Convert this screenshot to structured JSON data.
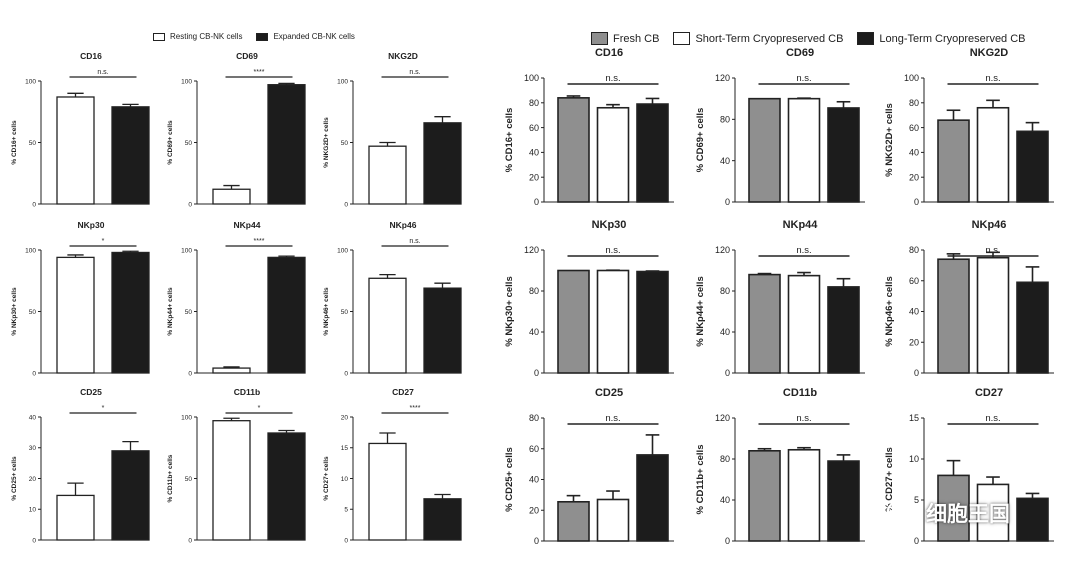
{
  "colors": {
    "fresh": "#8f8f8f",
    "short": "#ffffff",
    "long": "#1c1c1c",
    "resting": "#ffffff",
    "expanded": "#1c1c1c",
    "axis": "#222222"
  },
  "legend_left": [
    {
      "label": "Resting CB-NK cells",
      "color": "#ffffff"
    },
    {
      "label": "Expanded CB-NK cells",
      "color": "#1c1c1c"
    }
  ],
  "legend_right": [
    {
      "label": "Fresh CB",
      "color": "#8f8f8f"
    },
    {
      "label": "Short-Term Cryopreserved CB",
      "color": "#ffffff"
    },
    {
      "label": "Long-Term Cryopreserved CB",
      "color": "#1c1c1c"
    }
  ],
  "watermark": {
    "text": "细胞王国",
    "icon": "wechat-logo-icon"
  },
  "chart_data": [
    {
      "type": "bar",
      "panel": "left",
      "title": "CD16",
      "ylabel": "% CD16+ cells",
      "ylim": [
        0,
        100
      ],
      "yticks": [
        0,
        50,
        100
      ],
      "categories": [
        "Resting CB-NK cells",
        "Expanded CB-NK cells"
      ],
      "values": [
        87,
        79
      ],
      "errors": [
        3,
        2
      ],
      "significance": "n.s."
    },
    {
      "type": "bar",
      "panel": "left",
      "title": "CD69",
      "ylabel": "% CD69+ cells",
      "ylim": [
        0,
        100
      ],
      "yticks": [
        0,
        50,
        100
      ],
      "categories": [
        "Resting CB-NK cells",
        "Expanded CB-NK cells"
      ],
      "values": [
        12,
        97
      ],
      "errors": [
        3,
        1
      ],
      "significance": "****"
    },
    {
      "type": "bar",
      "panel": "left",
      "title": "NKG2D",
      "ylabel": "% NKG2D+ cells",
      "ylim": [
        0,
        100
      ],
      "yticks": [
        0,
        50,
        100
      ],
      "categories": [
        "Resting CB-NK cells",
        "Expanded CB-NK cells"
      ],
      "values": [
        47,
        66
      ],
      "errors": [
        3,
        5
      ],
      "significance": "n.s."
    },
    {
      "type": "bar",
      "panel": "left",
      "title": "NKp30",
      "ylabel": "% NKp30+ cells",
      "ylim": [
        0,
        100
      ],
      "yticks": [
        0,
        50,
        100
      ],
      "categories": [
        "Resting CB-NK cells",
        "Expanded CB-NK cells"
      ],
      "values": [
        94,
        98
      ],
      "errors": [
        2,
        1
      ],
      "significance": "*"
    },
    {
      "type": "bar",
      "panel": "left",
      "title": "NKp44",
      "ylabel": "% NKp44+ cells",
      "ylim": [
        0,
        100
      ],
      "yticks": [
        0,
        50,
        100
      ],
      "categories": [
        "Resting CB-NK cells",
        "Expanded CB-NK cells"
      ],
      "values": [
        4,
        94
      ],
      "errors": [
        1,
        1
      ],
      "significance": "****"
    },
    {
      "type": "bar",
      "panel": "left",
      "title": "NKp46",
      "ylabel": "% NKp46+ cells",
      "ylim": [
        0,
        100
      ],
      "yticks": [
        0,
        50,
        100
      ],
      "categories": [
        "Resting CB-NK cells",
        "Expanded CB-NK cells"
      ],
      "values": [
        77,
        69
      ],
      "errors": [
        3,
        4
      ],
      "significance": "n.s."
    },
    {
      "type": "bar",
      "panel": "left",
      "title": "CD25",
      "ylabel": "% CD25+ cells",
      "ylim": [
        0,
        40
      ],
      "yticks": [
        0,
        10,
        20,
        30,
        40
      ],
      "categories": [
        "Resting CB-NK cells",
        "Expanded CB-NK cells"
      ],
      "values": [
        14.5,
        29
      ],
      "errors": [
        4,
        3
      ],
      "significance": "*"
    },
    {
      "type": "bar",
      "panel": "left",
      "title": "CD11b",
      "ylabel": "% CD11b+ cells",
      "ylim": [
        0,
        100
      ],
      "yticks": [
        0,
        50,
        100
      ],
      "categories": [
        "Resting CB-NK cells",
        "Expanded CB-NK cells"
      ],
      "values": [
        97,
        87
      ],
      "errors": [
        2,
        2
      ],
      "significance": "*"
    },
    {
      "type": "bar",
      "panel": "left",
      "title": "CD27",
      "ylabel": "% CD27+ cells",
      "ylim": [
        0,
        20
      ],
      "yticks": [
        0,
        5,
        10,
        15,
        20
      ],
      "categories": [
        "Resting CB-NK cells",
        "Expanded CB-NK cells"
      ],
      "values": [
        15.7,
        6.7
      ],
      "errors": [
        1.7,
        0.7
      ],
      "significance": "****"
    },
    {
      "type": "bar",
      "panel": "right",
      "title": "CD16",
      "ylabel": "% CD16+ cells",
      "ylim": [
        0,
        100
      ],
      "yticks": [
        0,
        20,
        40,
        60,
        80,
        100
      ],
      "categories": [
        "Fresh CB",
        "Short-Term Cryopreserved CB",
        "Long-Term Cryopreserved CB"
      ],
      "values": [
        84,
        76,
        79
      ],
      "errors": [
        1.5,
        2.5,
        4.5
      ],
      "significance": "n.s."
    },
    {
      "type": "bar",
      "panel": "right",
      "title": "CD69",
      "ylabel": "% CD69+ cells",
      "ylim": [
        0,
        120
      ],
      "yticks": [
        0,
        40,
        80,
        120
      ],
      "categories": [
        "Fresh CB",
        "Short-Term Cryopreserved CB",
        "Long-Term Cryopreserved CB"
      ],
      "values": [
        100,
        100,
        91
      ],
      "errors": [
        0,
        0.5,
        6
      ],
      "significance": "n.s."
    },
    {
      "type": "bar",
      "panel": "right",
      "title": "NKG2D",
      "ylabel": "% NKG2D+ cells",
      "ylim": [
        0,
        100
      ],
      "yticks": [
        0,
        20,
        40,
        60,
        80,
        100
      ],
      "categories": [
        "Fresh CB",
        "Short-Term Cryopreserved CB",
        "Long-Term Cryopreserved CB"
      ],
      "values": [
        66,
        76,
        57
      ],
      "errors": [
        8,
        6,
        7
      ],
      "significance": "n.s."
    },
    {
      "type": "bar",
      "panel": "right",
      "title": "NKp30",
      "ylabel": "% NKp30+ cells",
      "ylim": [
        0,
        120
      ],
      "yticks": [
        0,
        40,
        80,
        120
      ],
      "categories": [
        "Fresh CB",
        "Short-Term Cryopreserved CB",
        "Long-Term Cryopreserved CB"
      ],
      "values": [
        100,
        100,
        99
      ],
      "errors": [
        0,
        0.3,
        0.5
      ],
      "significance": "n.s."
    },
    {
      "type": "bar",
      "panel": "right",
      "title": "NKp44",
      "ylabel": "% NKp44+ cells",
      "ylim": [
        0,
        120
      ],
      "yticks": [
        0,
        40,
        80,
        120
      ],
      "categories": [
        "Fresh CB",
        "Short-Term Cryopreserved CB",
        "Long-Term Cryopreserved CB"
      ],
      "values": [
        96,
        95,
        84
      ],
      "errors": [
        1,
        3,
        8
      ],
      "significance": "n.s."
    },
    {
      "type": "bar",
      "panel": "right",
      "title": "NKp46",
      "ylabel": "% NKp46+ cells",
      "ylim": [
        0,
        80
      ],
      "yticks": [
        0,
        20,
        40,
        60,
        80
      ],
      "categories": [
        "Fresh CB",
        "Short-Term Cryopreserved CB",
        "Long-Term Cryopreserved CB"
      ],
      "values": [
        74,
        75,
        59
      ],
      "errors": [
        3.5,
        3.5,
        10
      ],
      "significance": "n.s."
    },
    {
      "type": "bar",
      "panel": "right",
      "title": "CD25",
      "ylabel": "% CD25+ cells",
      "ylim": [
        0,
        80
      ],
      "yticks": [
        0,
        20,
        40,
        60,
        80
      ],
      "categories": [
        "Fresh CB",
        "Short-Term Cryopreserved CB",
        "Long-Term Cryopreserved CB"
      ],
      "values": [
        25.5,
        27,
        56
      ],
      "errors": [
        4,
        5.5,
        13
      ],
      "significance": "n.s."
    },
    {
      "type": "bar",
      "panel": "right",
      "title": "CD11b",
      "ylabel": "% CD11b+ cells",
      "ylim": [
        0,
        120
      ],
      "yticks": [
        0,
        40,
        80,
        120
      ],
      "categories": [
        "Fresh CB",
        "Short-Term Cryopreserved CB",
        "Long-Term Cryopreserved CB"
      ],
      "values": [
        88,
        89,
        78
      ],
      "errors": [
        2,
        2,
        6
      ],
      "significance": "n.s."
    },
    {
      "type": "bar",
      "panel": "right",
      "title": "CD27",
      "ylabel": "% CD27+ cells",
      "ylim": [
        0,
        15
      ],
      "yticks": [
        0,
        5,
        10,
        15
      ],
      "categories": [
        "Fresh CB",
        "Short-Term Cryopreserved CB",
        "Long-Term Cryopreserved CB"
      ],
      "values": [
        8,
        6.9,
        5.2
      ],
      "errors": [
        1.8,
        0.9,
        0.6
      ],
      "significance": "n.s."
    }
  ]
}
